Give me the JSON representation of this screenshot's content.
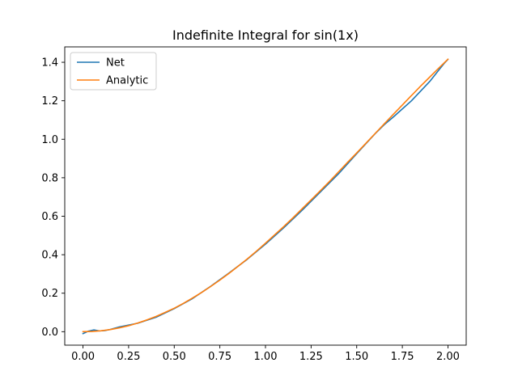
{
  "chart_data": {
    "type": "line",
    "title": "Indefinite Integral for sin(1x)",
    "xlabel": "",
    "ylabel": "",
    "xlim": [
      -0.1,
      2.1
    ],
    "ylim": [
      -0.07,
      1.48
    ],
    "xticks": [
      0.0,
      0.25,
      0.5,
      0.75,
      1.0,
      1.25,
      1.5,
      1.75,
      2.0
    ],
    "xtick_labels": [
      "0.00",
      "0.25",
      "0.50",
      "0.75",
      "1.00",
      "1.25",
      "1.50",
      "1.75",
      "2.00"
    ],
    "yticks": [
      0.0,
      0.2,
      0.4,
      0.6,
      0.8,
      1.0,
      1.2,
      1.4
    ],
    "ytick_labels": [
      "0.0",
      "0.2",
      "0.4",
      "0.6",
      "0.8",
      "1.0",
      "1.2",
      "1.4"
    ],
    "grid": false,
    "legend_position": "top-left",
    "series": [
      {
        "name": "Net",
        "color": "#1f77b4",
        "x": [
          0.0,
          0.03,
          0.06,
          0.09,
          0.12,
          0.15,
          0.2,
          0.3,
          0.4,
          0.5,
          0.6,
          0.7,
          0.8,
          0.9,
          1.0,
          1.1,
          1.2,
          1.3,
          1.4,
          1.5,
          1.6,
          1.65,
          1.7,
          1.8,
          1.9,
          1.95,
          1.98,
          2.0
        ],
        "y": [
          -0.01,
          0.003,
          0.009,
          0.004,
          0.006,
          0.012,
          0.025,
          0.044,
          0.075,
          0.12,
          0.172,
          0.236,
          0.305,
          0.376,
          0.455,
          0.54,
          0.63,
          0.725,
          0.82,
          0.925,
          1.028,
          1.075,
          1.115,
          1.2,
          1.3,
          1.36,
          1.395,
          1.415
        ]
      },
      {
        "name": "Analytic",
        "color": "#ff7f0e",
        "x": [
          0.0,
          0.05,
          0.1,
          0.15,
          0.2,
          0.25,
          0.3,
          0.35,
          0.4,
          0.45,
          0.5,
          0.55,
          0.6,
          0.65,
          0.7,
          0.75,
          0.8,
          0.85,
          0.9,
          0.95,
          1.0,
          1.05,
          1.1,
          1.15,
          1.2,
          1.25,
          1.3,
          1.35,
          1.4,
          1.45,
          1.5,
          1.55,
          1.6,
          1.65,
          1.7,
          1.75,
          1.8,
          1.85,
          1.9,
          1.95,
          2.0
        ],
        "y": [
          0.0,
          0.001,
          0.005,
          0.011,
          0.02,
          0.031,
          0.045,
          0.061,
          0.079,
          0.1,
          0.122,
          0.147,
          0.175,
          0.204,
          0.235,
          0.268,
          0.303,
          0.34,
          0.378,
          0.418,
          0.46,
          0.503,
          0.546,
          0.591,
          0.638,
          0.685,
          0.732,
          0.78,
          0.83,
          0.88,
          0.929,
          0.979,
          1.029,
          1.079,
          1.129,
          1.178,
          1.227,
          1.276,
          1.323,
          1.37,
          1.416
        ]
      }
    ]
  }
}
